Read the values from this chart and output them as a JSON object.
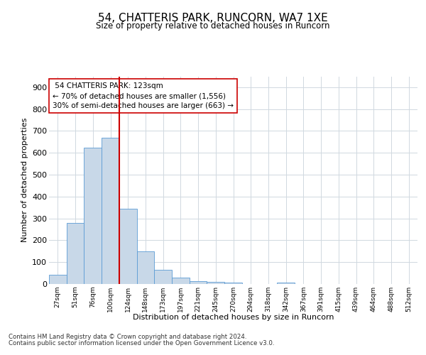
{
  "title": "54, CHATTERIS PARK, RUNCORN, WA7 1XE",
  "subtitle": "Size of property relative to detached houses in Runcorn",
  "xlabel": "Distribution of detached houses by size in Runcorn",
  "ylabel": "Number of detached properties",
  "bar_color": "#c8d8e8",
  "bar_edge_color": "#5b9bd5",
  "background_color": "#ffffff",
  "grid_color": "#d0d8e0",
  "annotation_line_color": "#cc0000",
  "annotation_box_color": "#cc0000",
  "tick_labels": [
    "27sqm",
    "51sqm",
    "76sqm",
    "100sqm",
    "124sqm",
    "148sqm",
    "173sqm",
    "197sqm",
    "221sqm",
    "245sqm",
    "270sqm",
    "294sqm",
    "318sqm",
    "342sqm",
    "367sqm",
    "391sqm",
    "415sqm",
    "439sqm",
    "464sqm",
    "488sqm",
    "512sqm"
  ],
  "bar_values": [
    42,
    278,
    622,
    668,
    345,
    148,
    65,
    28,
    12,
    10,
    8,
    0,
    0,
    6,
    0,
    0,
    0,
    0,
    0,
    0,
    0
  ],
  "property_name": "54 CHATTERIS PARK",
  "property_sqm": "123sqm",
  "pct_smaller": 70,
  "n_smaller": 1556,
  "pct_larger_semi": 30,
  "n_larger_semi": 663,
  "vline_x": 3.5,
  "ylim": [
    0,
    950
  ],
  "yticks": [
    0,
    100,
    200,
    300,
    400,
    500,
    600,
    700,
    800,
    900
  ],
  "footer_line1": "Contains HM Land Registry data © Crown copyright and database right 2024.",
  "footer_line2": "Contains public sector information licensed under the Open Government Licence v3.0."
}
